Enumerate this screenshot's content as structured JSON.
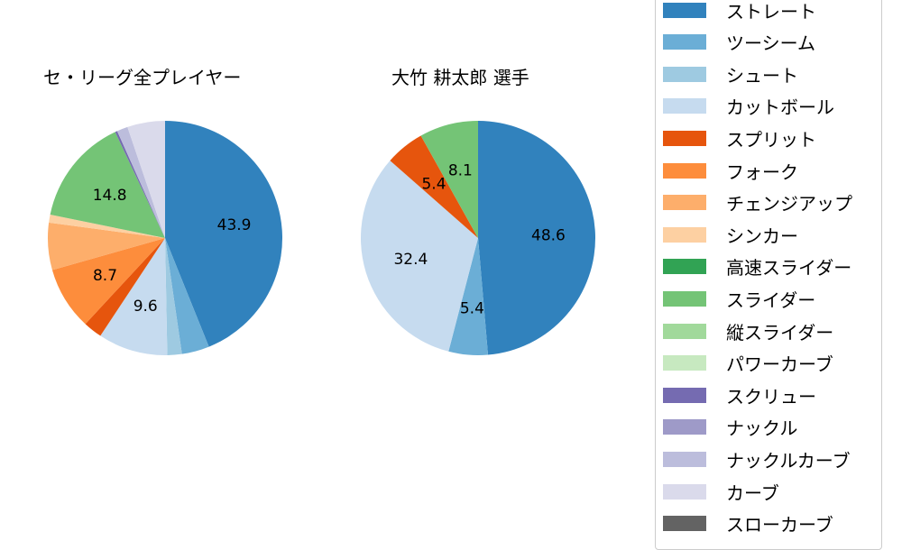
{
  "chart_data": [
    {
      "type": "pie",
      "title": "セ・リーグ全プレイヤー",
      "categories": [
        "ストレート",
        "ツーシーム",
        "シュート",
        "カットボール",
        "スプリット",
        "フォーク",
        "チェンジアップ",
        "シンカー",
        "スライダー",
        "スクリュー",
        "ナックルカーブ",
        "カーブ"
      ],
      "values": [
        43.9,
        3.8,
        2.0,
        9.6,
        2.6,
        8.7,
        6.5,
        1.1,
        14.8,
        0.3,
        1.5,
        5.2
      ],
      "labels_shown": [
        "43.9",
        "9.6",
        "8.7",
        "14.8"
      ],
      "start_angle": 90,
      "direction": "clockwise"
    },
    {
      "type": "pie",
      "title": "大竹 耕太郎  選手",
      "categories": [
        "ストレート",
        "ツーシーム",
        "カットボール",
        "スプリット",
        "スライダー"
      ],
      "values": [
        48.6,
        5.4,
        32.4,
        5.4,
        8.1
      ],
      "labels_shown": [
        "48.6",
        "5.4",
        "32.4",
        "5.4",
        "8.1"
      ],
      "start_angle": 90,
      "direction": "clockwise"
    }
  ],
  "titles": {
    "left": "セ・リーグ全プレイヤー",
    "right": "大竹 耕太郎  選手"
  },
  "legend": {
    "items": [
      {
        "label": "ストレート",
        "color": "#3182bd"
      },
      {
        "label": "ツーシーム",
        "color": "#6baed6"
      },
      {
        "label": "シュート",
        "color": "#9ecae1"
      },
      {
        "label": "カットボール",
        "color": "#c6dbef"
      },
      {
        "label": "スプリット",
        "color": "#e6550d"
      },
      {
        "label": "フォーク",
        "color": "#fd8d3c"
      },
      {
        "label": "チェンジアップ",
        "color": "#fdae6b"
      },
      {
        "label": "シンカー",
        "color": "#fdd0a2"
      },
      {
        "label": "高速スライダー",
        "color": "#31a354"
      },
      {
        "label": "スライダー",
        "color": "#74c476"
      },
      {
        "label": "縦スライダー",
        "color": "#a1d99b"
      },
      {
        "label": "パワーカーブ",
        "color": "#c7e9c0"
      },
      {
        "label": "スクリュー",
        "color": "#756bb1"
      },
      {
        "label": "ナックル",
        "color": "#9e9ac8"
      },
      {
        "label": "ナックルカーブ",
        "color": "#bcbddc"
      },
      {
        "label": "カーブ",
        "color": "#dadaeb"
      },
      {
        "label": "スローカーブ",
        "color": "#636363"
      }
    ]
  }
}
